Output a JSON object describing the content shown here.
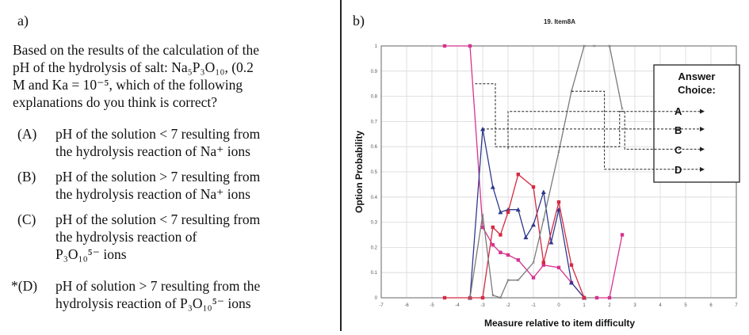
{
  "panel_a": {
    "label": "a)",
    "question": {
      "lines": [
        "Based on the results of the calculation of the",
        "pH of the hydrolysis of salt: Na₅P₃O₁₀, (0.2",
        "M and Ka = 10⁻⁵, which of the following",
        "explanations do you think is correct?"
      ]
    },
    "options": [
      {
        "letter": "(A)",
        "lines": [
          "pH of the solution < 7 resulting from",
          "the hydrolysis reaction of Na⁺ ions"
        ]
      },
      {
        "letter": "(B)",
        "lines": [
          "pH of the solution > 7 resulting from",
          "the hydrolysis reaction of Na⁺ ions"
        ]
      },
      {
        "letter": "(C)",
        "lines": [
          "pH of the solution < 7 resulting from",
          "the hydrolysis reaction of",
          "P₃O₁₀⁵⁻ ions"
        ]
      },
      {
        "letter": "*(D)",
        "lines": [
          "pH of solution > 7 resulting from the",
          "hydrolysis reaction of P₃O₁₀⁵⁻ ions"
        ]
      }
    ]
  },
  "panel_b": {
    "label": "b)",
    "legend": {
      "title_line1": "Answer",
      "title_line2": "Choice:",
      "entries": [
        "A",
        "B",
        "C",
        "D"
      ]
    }
  },
  "chart_data": {
    "type": "line",
    "title": "19. Item8A",
    "xlabel": "Measure relative to item difficulty",
    "ylabel": "Option Probability",
    "xlim": [
      -7,
      7
    ],
    "ylim": [
      0,
      1
    ],
    "xticks": [
      "-7",
      "-6",
      "-5",
      "-4",
      "-3",
      "-2",
      "-1",
      "0",
      "1",
      "2",
      "3",
      "4",
      "5",
      "6",
      "7"
    ],
    "yticks": [
      "0",
      "0.1",
      "0.2",
      "0.3",
      "0.4",
      "0.5",
      "0.6",
      "0.7",
      "0.8",
      "0.9",
      "1"
    ],
    "grid": true,
    "legend_position": "right",
    "series": [
      {
        "name": "A",
        "color": "#d6338f",
        "x": [
          -4.5,
          -3.5,
          -3.0,
          -2.6,
          -2.3,
          -2.0,
          -1.6,
          -1.0,
          -0.6,
          0.0,
          0.5,
          1.0
        ],
        "y": [
          1.0,
          1.0,
          0.28,
          0.21,
          0.18,
          0.17,
          0.15,
          0.08,
          0.13,
          0.12,
          0.06,
          0.0
        ]
      },
      {
        "name": "B",
        "color": "#2e3a8c",
        "x": [
          -3.5,
          -3.0,
          -2.6,
          -2.3,
          -2.0,
          -1.6,
          -1.3,
          -1.0,
          -0.6,
          -0.3,
          0.0,
          0.5,
          1.0
        ],
        "y": [
          0.0,
          0.67,
          0.44,
          0.34,
          0.35,
          0.35,
          0.24,
          0.29,
          0.42,
          0.22,
          0.35,
          0.06,
          0.0
        ]
      },
      {
        "name": "C",
        "color": "#d42a42",
        "x": [
          -4.5,
          -3.5,
          -3.0,
          -2.6,
          -2.3,
          -2.0,
          -1.6,
          -1.0,
          -0.6,
          0.0,
          0.5,
          1.0
        ],
        "y": [
          0.0,
          0.0,
          0.0,
          0.28,
          0.25,
          0.34,
          0.49,
          0.44,
          0.14,
          0.38,
          0.13,
          0.0
        ]
      },
      {
        "name": "D",
        "color": "#7a7a7a",
        "x": [
          -3.5,
          -3.0,
          -2.6,
          -2.3,
          -2.0,
          -1.6,
          -1.0,
          -0.6,
          0.0,
          0.5,
          1.0,
          1.4,
          2.0,
          2.5
        ],
        "y": [
          0.0,
          0.33,
          0.01,
          0.0,
          0.07,
          0.07,
          0.14,
          0.31,
          0.58,
          0.82,
          1.0,
          1.0,
          1.0,
          0.75
        ]
      },
      {
        "name": "",
        "color": "#d6338f",
        "x": [
          1.5,
          2.0,
          2.5
        ],
        "y": [
          0.0,
          0.0,
          0.25
        ]
      }
    ]
  }
}
